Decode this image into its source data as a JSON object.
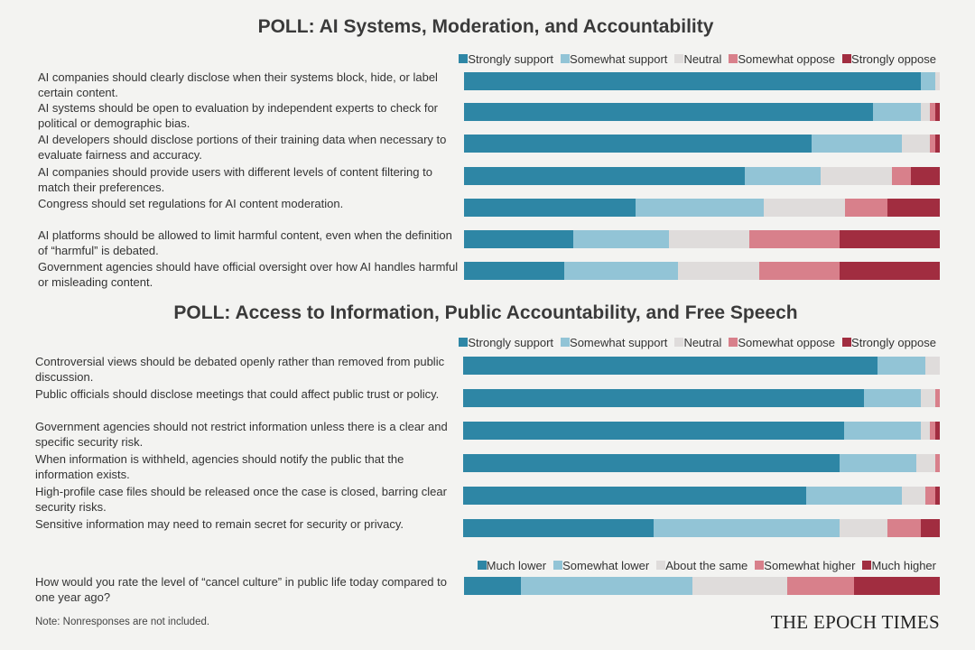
{
  "chart_data": [
    {
      "type": "bar",
      "orientation": "horizontal",
      "stacked": true,
      "title": "POLL: AI Systems, Moderation, and Accountability",
      "xlim": [
        0,
        100
      ],
      "categories": [
        "AI companies should clearly disclose when their systems block, hide, or label certain content.",
        "AI systems should be open to evaluation by independent experts to check for political or demographic bias.",
        "AI developers should disclose portions of their training data when necessary to evaluate fairness and accuracy.",
        "AI companies should provide users with different levels of content filtering to match their preferences.",
        "Congress should set regulations for AI content moderation.",
        "AI platforms should be allowed to limit harmful content, even when the definition of “harmful” is debated.",
        "Government agencies should have official oversight over how AI handles harmful or misleading content."
      ],
      "series": [
        {
          "name": "Strongly support",
          "color": "#2e86a5",
          "values": [
            96,
            86,
            73,
            59,
            36,
            23,
            21
          ]
        },
        {
          "name": "Somewhat support",
          "color": "#92c4d6",
          "values": [
            3,
            10,
            19,
            16,
            27,
            20,
            24
          ]
        },
        {
          "name": "Neutral",
          "color": "#dfdcdb",
          "values": [
            1,
            2,
            6,
            15,
            17,
            17,
            17
          ]
        },
        {
          "name": "Somewhat oppose",
          "color": "#d8808b",
          "values": [
            0,
            1,
            1,
            4,
            9,
            19,
            17
          ]
        },
        {
          "name": "Strongly oppose",
          "color": "#a12d40",
          "values": [
            0,
            1,
            1,
            6,
            11,
            21,
            21
          ]
        }
      ]
    },
    {
      "type": "bar",
      "orientation": "horizontal",
      "stacked": true,
      "title": "POLL: Access to Information, Public Accountability, and Free Speech",
      "xlim": [
        0,
        100
      ],
      "categories": [
        "Controversial views should be debated openly rather than removed from public discussion.",
        "Public officials should disclose meetings that could affect public trust or policy.",
        "Government agencies should not restrict information unless there is a clear and specific security risk.",
        "When information is withheld, agencies should notify the public that the information exists.",
        "High-profile case files should be released once the case is closed, barring clear security risks.",
        "Sensitive information may need to remain secret for security or privacy."
      ],
      "series": [
        {
          "name": "Strongly support",
          "color": "#2e86a5",
          "values": [
            87,
            84,
            80,
            79,
            72,
            40
          ]
        },
        {
          "name": "Somewhat support",
          "color": "#92c4d6",
          "values": [
            10,
            12,
            16,
            16,
            20,
            39
          ]
        },
        {
          "name": "Neutral",
          "color": "#dfdcdb",
          "values": [
            3,
            3,
            2,
            4,
            5,
            10
          ]
        },
        {
          "name": "Somewhat oppose",
          "color": "#d8808b",
          "values": [
            0,
            1,
            1,
            1,
            2,
            7
          ]
        },
        {
          "name": "Strongly oppose",
          "color": "#a12d40",
          "values": [
            0,
            0,
            1,
            0,
            1,
            4
          ]
        }
      ]
    },
    {
      "type": "bar",
      "orientation": "horizontal",
      "stacked": true,
      "xlim": [
        0,
        100
      ],
      "categories": [
        "How would you rate the level of “cancel culture” in public life today compared to one year ago?"
      ],
      "series": [
        {
          "name": "Much lower",
          "color": "#2e86a5",
          "values": [
            12
          ]
        },
        {
          "name": "Somewhat lower",
          "color": "#92c4d6",
          "values": [
            36
          ]
        },
        {
          "name": "About the same",
          "color": "#dfdcdb",
          "values": [
            20
          ]
        },
        {
          "name": "Somewhat higher",
          "color": "#d8808b",
          "values": [
            14
          ]
        },
        {
          "name": "Much higher",
          "color": "#a12d40",
          "values": [
            18
          ]
        }
      ]
    }
  ],
  "note": "Note: Nonresponses are not included.",
  "brand": "THE EPOCH TIMES"
}
